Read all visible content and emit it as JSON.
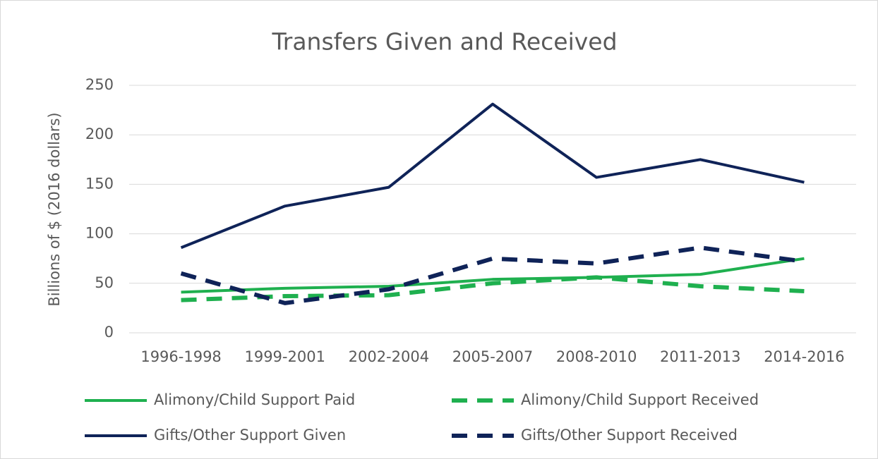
{
  "chart_data": {
    "type": "line",
    "title": "Transfers Given and Received",
    "y_label": "Billions of $ (2016 dollars)",
    "categories": [
      "1996-1998",
      "1999-2001",
      "2002-2004",
      "2005-2007",
      "2008-2010",
      "2011-2013",
      "2014-2016"
    ],
    "series": [
      {
        "name": "Alimony/Child Support Paid",
        "color": "#1fb04f",
        "dashed": false,
        "values": [
          41,
          45,
          47,
          54,
          56,
          59,
          75
        ]
      },
      {
        "name": "Alimony/Child Support Received",
        "color": "#1fb04f",
        "dashed": true,
        "values": [
          33,
          37,
          38,
          50,
          56,
          47,
          42
        ]
      },
      {
        "name": "Gifts/Other Support Given",
        "color": "#0f2358",
        "dashed": false,
        "values": [
          86,
          128,
          147,
          231,
          157,
          175,
          152
        ]
      },
      {
        "name": "Gifts/Other Support Received",
        "color": "#0f2358",
        "dashed": true,
        "values": [
          60,
          30,
          44,
          75,
          70,
          86,
          72
        ]
      }
    ],
    "ylim": [
      0,
      250
    ],
    "yticks": [
      0,
      50,
      100,
      150,
      200,
      250
    ],
    "grid": true,
    "legend": "bottom"
  }
}
